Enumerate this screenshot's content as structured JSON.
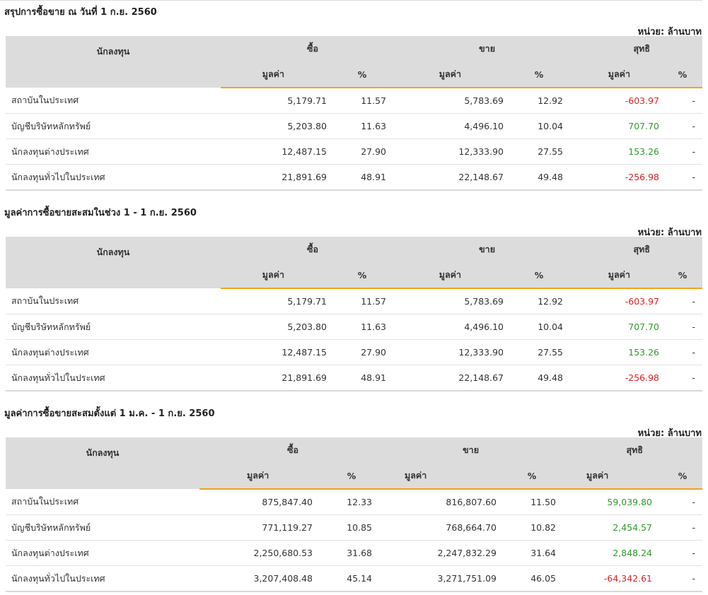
{
  "unit_label": "หน่วย: ล้านบาท",
  "headers": {
    "investor": "นักลงทุน",
    "buy": "ซื้อ",
    "sell": "ขาย",
    "net": "สุทธิ",
    "value": "มูลค่า",
    "pct": "%"
  },
  "sections": [
    {
      "title": "สรุปการซื้อขาย ณ วันที่ 1 ก.ย. 2560",
      "rows": [
        {
          "name": "สถาบันในประเทศ",
          "buy": "5,179.71",
          "buy_pct": "11.57",
          "sell": "5,783.69",
          "sell_pct": "12.92",
          "net": "-603.97",
          "net_pct": "-"
        },
        {
          "name": "บัญชีบริษัทหลักทรัพย์",
          "buy": "5,203.80",
          "buy_pct": "11.63",
          "sell": "4,496.10",
          "sell_pct": "10.04",
          "net": "707.70",
          "net_pct": "-"
        },
        {
          "name": "นักลงทุนต่างประเทศ",
          "buy": "12,487.15",
          "buy_pct": "27.90",
          "sell": "12,333.90",
          "sell_pct": "27.55",
          "net": "153.26",
          "net_pct": "-"
        },
        {
          "name": "นักลงทุนทั่วไปในประเทศ",
          "buy": "21,891.69",
          "buy_pct": "48.91",
          "sell": "22,148.67",
          "sell_pct": "49.48",
          "net": "-256.98",
          "net_pct": "-"
        }
      ]
    },
    {
      "title": "มูลค่าการซื้อขายสะสมในช่วง 1 - 1 ก.ย. 2560",
      "rows": [
        {
          "name": "สถาบันในประเทศ",
          "buy": "5,179.71",
          "buy_pct": "11.57",
          "sell": "5,783.69",
          "sell_pct": "12.92",
          "net": "-603.97",
          "net_pct": "-"
        },
        {
          "name": "บัญชีบริษัทหลักทรัพย์",
          "buy": "5,203.80",
          "buy_pct": "11.63",
          "sell": "4,496.10",
          "sell_pct": "10.04",
          "net": "707.70",
          "net_pct": "-"
        },
        {
          "name": "นักลงทุนต่างประเทศ",
          "buy": "12,487.15",
          "buy_pct": "27.90",
          "sell": "12,333.90",
          "sell_pct": "27.55",
          "net": "153.26",
          "net_pct": "-"
        },
        {
          "name": "นักลงทุนทั่วไปในประเทศ",
          "buy": "21,891.69",
          "buy_pct": "48.91",
          "sell": "22,148.67",
          "sell_pct": "49.48",
          "net": "-256.98",
          "net_pct": "-"
        }
      ]
    },
    {
      "title": "มูลค่าการซื้อขายสะสมตั้งแต่ 1 ม.ค. - 1 ก.ย. 2560",
      "rows": [
        {
          "name": "สถาบันในประเทศ",
          "buy": "875,847.40",
          "buy_pct": "12.33",
          "sell": "816,807.60",
          "sell_pct": "11.50",
          "net": "59,039.80",
          "net_pct": "-"
        },
        {
          "name": "บัญชีบริษัทหลักทรัพย์",
          "buy": "771,119.27",
          "buy_pct": "10.85",
          "sell": "768,664.70",
          "sell_pct": "10.82",
          "net": "2,454.57",
          "net_pct": "-"
        },
        {
          "name": "นักลงทุนต่างประเทศ",
          "buy": "2,250,680.53",
          "buy_pct": "31.68",
          "sell": "2,247,832.29",
          "sell_pct": "31.64",
          "net": "2,848.24",
          "net_pct": "-"
        },
        {
          "name": "นักลงทุนทั่วไปในประเทศ",
          "buy": "3,207,408.48",
          "buy_pct": "45.14",
          "sell": "3,271,751.09",
          "sell_pct": "46.05",
          "net": "-64,342.61",
          "net_pct": "-"
        }
      ]
    }
  ],
  "colors": {
    "positive": "#2f9a2f",
    "negative": "#e02020",
    "header_bg": "#dcdcdc",
    "accent_underline": "#f5a31a"
  }
}
